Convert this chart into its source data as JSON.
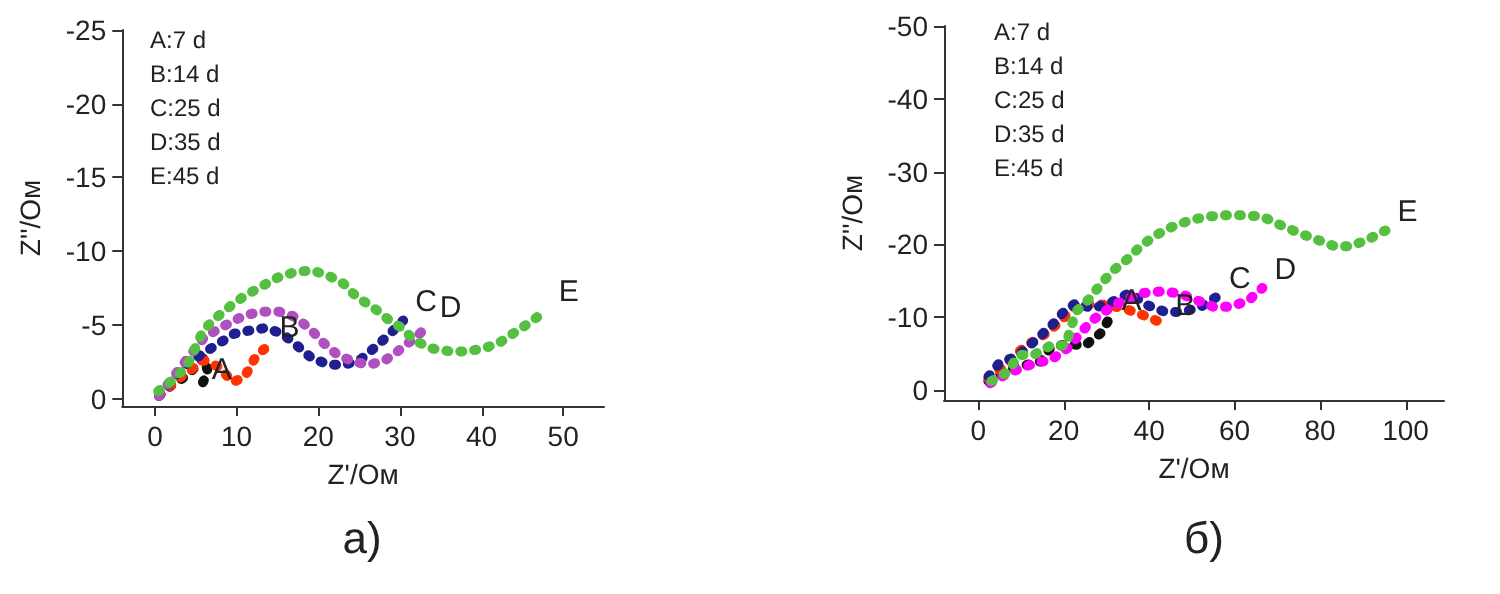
{
  "chart_data": [
    {
      "type": "line",
      "title": "а)",
      "xlabel": "Z'/Ом",
      "ylabel": "Z''/Ом",
      "annotations": [
        "A:7 d",
        "B:14 d",
        "C:25 d",
        "D:35 d",
        "E:45 d"
      ],
      "xlim": [
        -4,
        55
      ],
      "ylim": [
        0.5,
        -25
      ],
      "xticks": [
        0,
        10,
        20,
        30,
        40,
        50
      ],
      "yticks": [
        0,
        -5,
        -10,
        -15,
        -20,
        -25
      ],
      "grid": false,
      "legend": false,
      "marker": "none",
      "line_style": "dotted",
      "series": [
        {
          "name": "A",
          "color": "#111111",
          "x": [
            0.5,
            2,
            4,
            6,
            6.5,
            5.5
          ],
          "values": [
            -0.2,
            -0.9,
            -1.6,
            -2.8,
            -1.8,
            -0.7
          ]
        },
        {
          "name": "B",
          "color": "#ff3300",
          "x": [
            0.5,
            3,
            6,
            8,
            9.5,
            11,
            12.2,
            13.8
          ],
          "values": [
            -0.2,
            -1.4,
            -2.6,
            -2.1,
            -1.1,
            -1.5,
            -2.7,
            -3.6
          ]
        },
        {
          "name": "C",
          "color": "#1f1f8f",
          "x": [
            0.5,
            3.7,
            7.7,
            9.7,
            11.4,
            13.6,
            15.6,
            17.4,
            19.3,
            21.4,
            23.3,
            25.3,
            27.2,
            28.8,
            30.4
          ],
          "values": [
            -0.2,
            -2.3,
            -3.7,
            -4.4,
            -4.6,
            -4.8,
            -4.4,
            -3.6,
            -2.7,
            -2.3,
            -2.3,
            -2.7,
            -3.6,
            -4.4,
            -5.3
          ]
        },
        {
          "name": "D",
          "color": "#b050c0",
          "x": [
            0.5,
            3.7,
            6.1,
            8.7,
            10.8,
            12.9,
            15.2,
            16.9,
            18.9,
            20.6,
            22.3,
            24.3,
            26.3,
            28.2,
            30.2,
            32,
            33.4
          ],
          "values": [
            -0.2,
            -2.5,
            -4.2,
            -5,
            -5.6,
            -5.9,
            -5.9,
            -5.6,
            -4.8,
            -3.8,
            -3,
            -2.5,
            -2.3,
            -2.6,
            -3.4,
            -4.2,
            -4.9
          ]
        },
        {
          "name": "E",
          "color": "#55c040",
          "x": [
            0.4,
            2.5,
            4,
            5.9,
            7.3,
            9.3,
            10.8,
            13,
            15,
            17.2,
            19.3,
            21.4,
            23.1,
            24.7,
            26.7,
            28.5,
            30.2,
            31.9,
            34,
            36.2,
            38.1,
            40.3,
            42.2,
            44.1,
            46,
            48
          ],
          "values": [
            -0.5,
            -1.4,
            -2.3,
            -4.6,
            -5.4,
            -6.3,
            -6.9,
            -7.6,
            -8.2,
            -8.6,
            -8.7,
            -8.3,
            -7.8,
            -6.9,
            -6.2,
            -5.4,
            -4.8,
            -3.9,
            -3.4,
            -3.2,
            -3.2,
            -3.4,
            -3.8,
            -4.5,
            -5.2,
            -6
          ]
        }
      ]
    },
    {
      "type": "line",
      "title": "б)",
      "xlabel": "Z'/Ом",
      "ylabel": "Z''/Ом",
      "annotations": [
        "A:7 d",
        "B:14 d",
        "C:25 d",
        "D:35 d",
        "E:45 d"
      ],
      "xlim": [
        -8,
        109
      ],
      "ylim": [
        1.4,
        -50
      ],
      "xticks": [
        0,
        20,
        40,
        60,
        80,
        100
      ],
      "yticks": [
        0,
        -10,
        -20,
        -30,
        -40,
        -50
      ],
      "grid": false,
      "legend": false,
      "marker": "none",
      "line_style": "dotted",
      "series": [
        {
          "name": "A",
          "color": "#111111",
          "x": [
            2.4,
            6.6,
            10,
            14.2,
            17,
            21,
            25,
            28.7,
            30.7
          ],
          "values": [
            -1.2,
            -2.7,
            -3.3,
            -3.7,
            -5.8,
            -6.3,
            -6.1,
            -7.8,
            -9.8
          ]
        },
        {
          "name": "B",
          "color": "#ff3300",
          "x": [
            2.4,
            7,
            10.6,
            16,
            19.2,
            22.4,
            27,
            31,
            35,
            39.4,
            43.3
          ],
          "values": [
            -1.5,
            -3.7,
            -5.8,
            -7.8,
            -9.4,
            -11.4,
            -11.8,
            -11.6,
            -11,
            -10.1,
            -9.1
          ]
        },
        {
          "name": "C",
          "color": "#1f1f8f",
          "x": [
            2.4,
            5,
            9.1,
            12.6,
            17,
            19.7,
            22.8,
            26.8,
            30.7,
            35.4,
            39.7,
            43.8,
            48,
            52,
            55.9
          ],
          "values": [
            -1.8,
            -3.7,
            -4.6,
            -6.4,
            -8.7,
            -10.5,
            -11.9,
            -11.2,
            -11.9,
            -13.3,
            -11.6,
            -10.7,
            -10.7,
            -11.4,
            -12.8
          ]
        },
        {
          "name": "D",
          "color": "#ff00ff",
          "x": [
            2.8,
            7,
            13.4,
            17,
            21.3,
            23.9,
            26.8,
            30.7,
            34.6,
            38.6,
            42.5,
            46.9,
            51.2,
            55.1,
            59,
            63.3,
            66.5
          ],
          "values": [
            -0.9,
            -2.3,
            -3.7,
            -4.1,
            -5.9,
            -7.8,
            -9.6,
            -11.2,
            -12.5,
            -13.3,
            -13.5,
            -13.3,
            -12.3,
            -11.4,
            -11.4,
            -12.3,
            -14
          ]
        },
        {
          "name": "E",
          "color": "#55c040",
          "x": [
            3.1,
            7.1,
            9.4,
            13,
            17,
            20.5,
            22.8,
            26,
            28.8,
            31.8,
            35,
            38.1,
            41.7,
            45.4,
            49.6,
            53.5,
            57.9,
            62.2,
            66.5,
            70.9,
            75.3,
            79,
            83.1,
            86.9,
            91,
            95.3
          ],
          "values": [
            -1.2,
            -2.5,
            -4.8,
            -4.8,
            -6.1,
            -6.1,
            -10.7,
            -12.5,
            -14.6,
            -16.5,
            -18,
            -19.8,
            -21.3,
            -22.4,
            -23.3,
            -23.8,
            -24,
            -24,
            -23.8,
            -22.6,
            -21.5,
            -20.7,
            -19.8,
            -19.7,
            -20.6,
            -21.9
          ]
        }
      ]
    }
  ]
}
